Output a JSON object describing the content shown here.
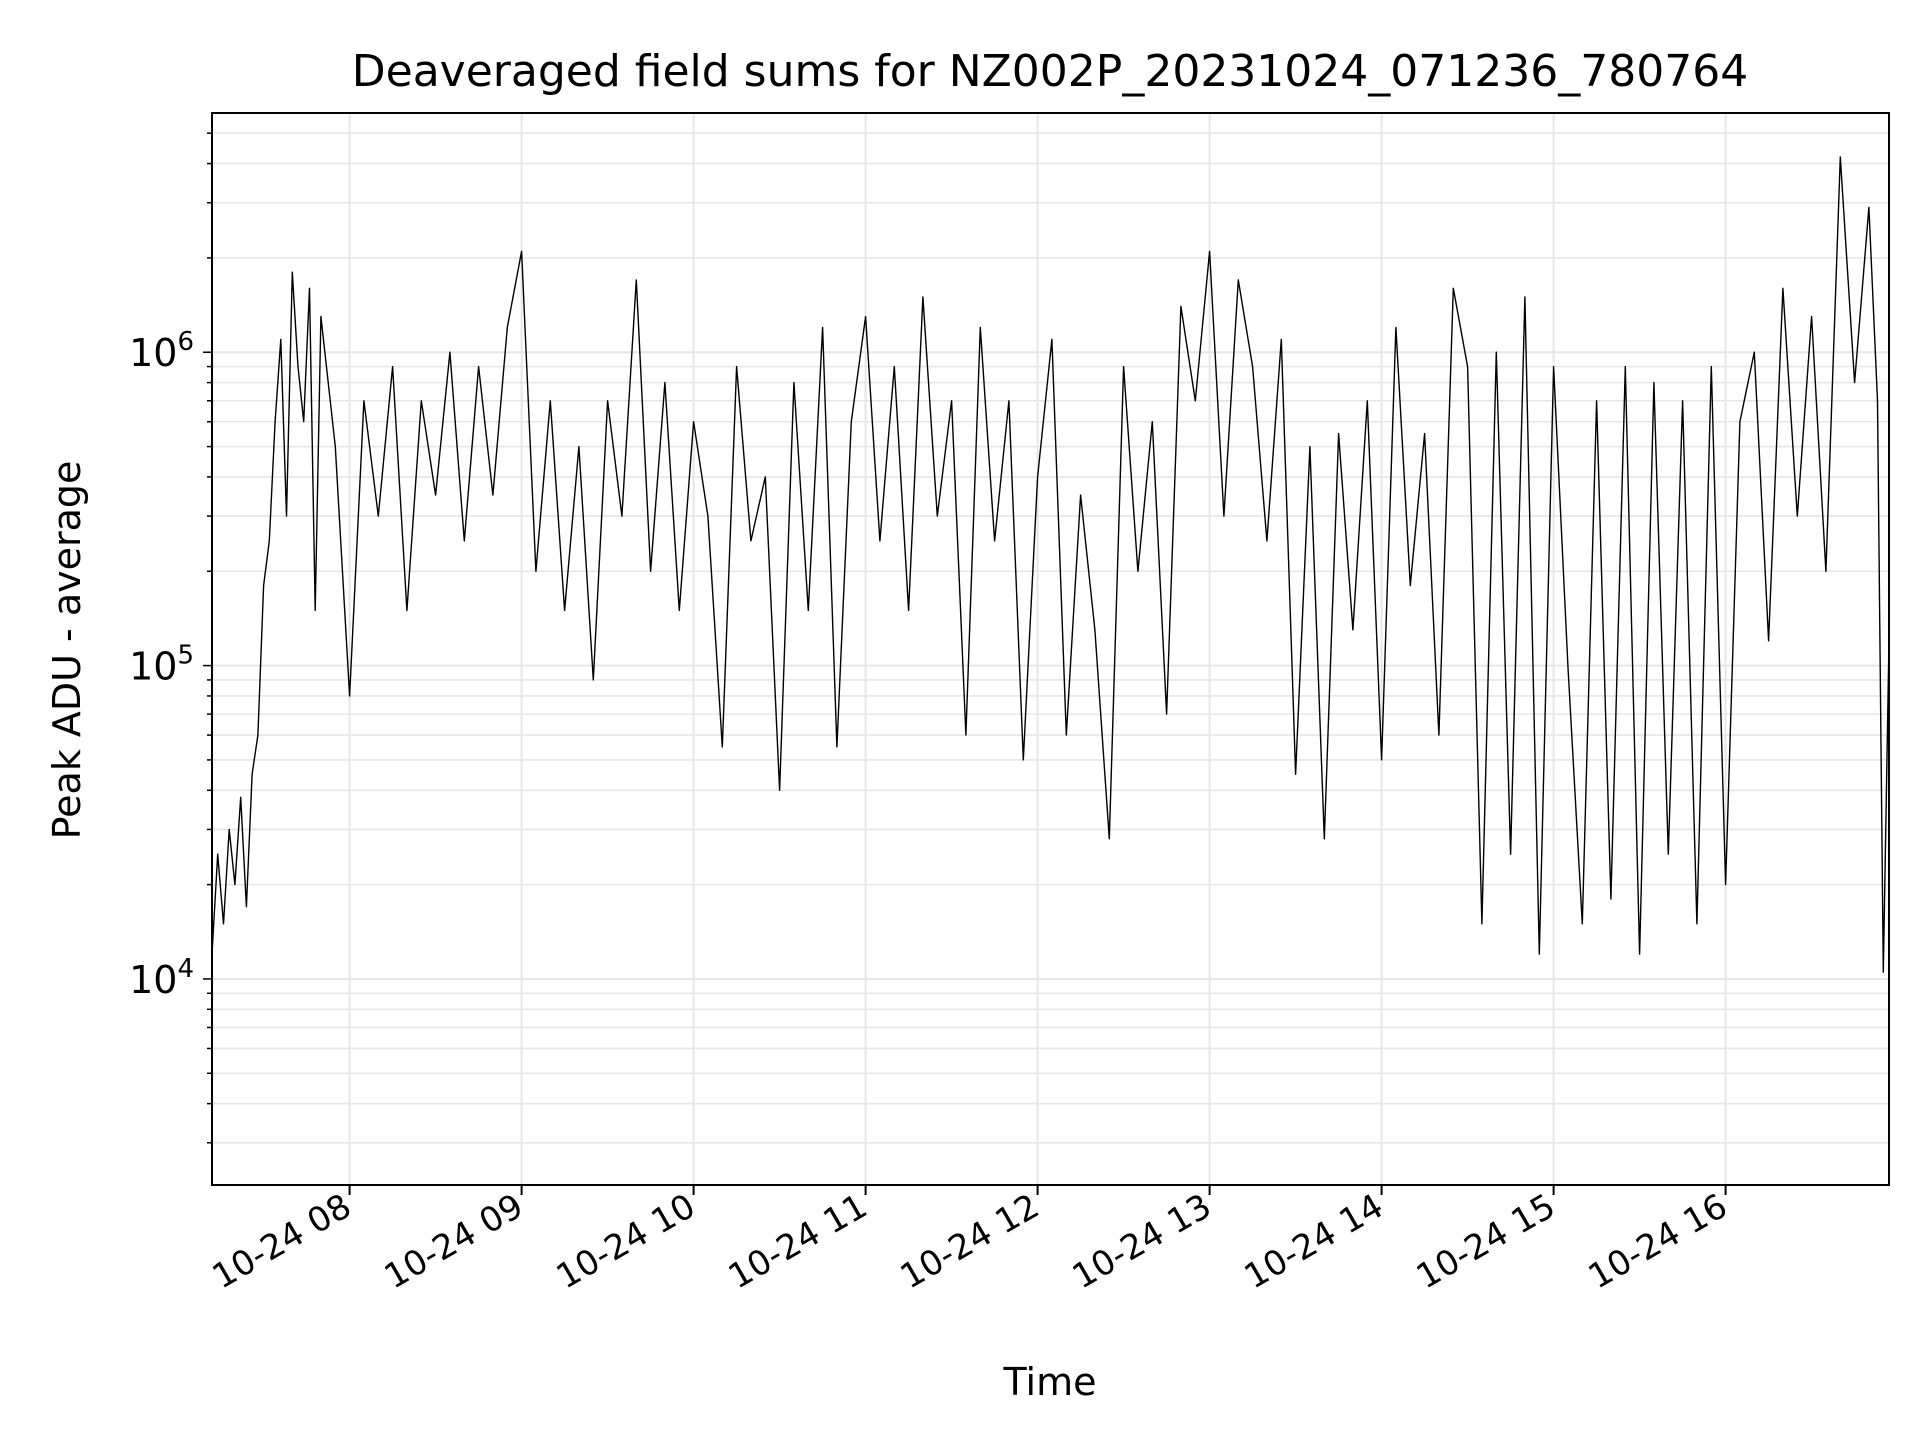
{
  "chart_data": {
    "type": "line",
    "title": "Deaveraged field sums for NZ002P_20231024_071236_780764",
    "xlabel": "Time",
    "ylabel": "Peak ADU - average",
    "yscale": "log",
    "grid": true,
    "line_color": "#000000",
    "grid_color": "#e6e6e6",
    "xlim": [
      "2023-10-24 07:12",
      "2023-10-24 16:57"
    ],
    "ylim": [
      2200,
      5800000
    ],
    "x_ticks": [
      {
        "value": "2023-10-24 08:00",
        "label": "10-24 08"
      },
      {
        "value": "2023-10-24 09:00",
        "label": "10-24 09"
      },
      {
        "value": "2023-10-24 10:00",
        "label": "10-24 10"
      },
      {
        "value": "2023-10-24 11:00",
        "label": "10-24 11"
      },
      {
        "value": "2023-10-24 12:00",
        "label": "10-24 12"
      },
      {
        "value": "2023-10-24 13:00",
        "label": "10-24 13"
      },
      {
        "value": "2023-10-24 14:00",
        "label": "10-24 14"
      },
      {
        "value": "2023-10-24 15:00",
        "label": "10-24 15"
      },
      {
        "value": "2023-10-24 16:00",
        "label": "10-24 16"
      }
    ],
    "y_ticks": [
      {
        "value": 10000,
        "base": "10",
        "exp": "4"
      },
      {
        "value": 100000,
        "base": "10",
        "exp": "5"
      },
      {
        "value": 1000000,
        "base": "10",
        "exp": "6"
      }
    ],
    "series": [
      {
        "x": [
          "2023-10-24 07:12",
          "2023-10-24 07:14",
          "2023-10-24 07:16",
          "2023-10-24 07:18",
          "2023-10-24 07:20",
          "2023-10-24 07:22",
          "2023-10-24 07:24",
          "2023-10-24 07:26",
          "2023-10-24 07:28",
          "2023-10-24 07:30",
          "2023-10-24 07:32",
          "2023-10-24 07:34",
          "2023-10-24 07:36",
          "2023-10-24 07:38",
          "2023-10-24 07:40",
          "2023-10-24 07:42",
          "2023-10-24 07:44",
          "2023-10-24 07:46",
          "2023-10-24 07:48",
          "2023-10-24 07:50",
          "2023-10-24 07:55",
          "2023-10-24 08:00",
          "2023-10-24 08:05",
          "2023-10-24 08:10",
          "2023-10-24 08:15",
          "2023-10-24 08:20",
          "2023-10-24 08:25",
          "2023-10-24 08:30",
          "2023-10-24 08:35",
          "2023-10-24 08:40",
          "2023-10-24 08:45",
          "2023-10-24 08:50",
          "2023-10-24 08:55",
          "2023-10-24 09:00",
          "2023-10-24 09:05",
          "2023-10-24 09:10",
          "2023-10-24 09:15",
          "2023-10-24 09:20",
          "2023-10-24 09:25",
          "2023-10-24 09:30",
          "2023-10-24 09:35",
          "2023-10-24 09:40",
          "2023-10-24 09:45",
          "2023-10-24 09:50",
          "2023-10-24 09:55",
          "2023-10-24 10:00",
          "2023-10-24 10:05",
          "2023-10-24 10:10",
          "2023-10-24 10:15",
          "2023-10-24 10:20",
          "2023-10-24 10:25",
          "2023-10-24 10:30",
          "2023-10-24 10:35",
          "2023-10-24 10:40",
          "2023-10-24 10:45",
          "2023-10-24 10:50",
          "2023-10-24 10:55",
          "2023-10-24 11:00",
          "2023-10-24 11:05",
          "2023-10-24 11:10",
          "2023-10-24 11:15",
          "2023-10-24 11:20",
          "2023-10-24 11:25",
          "2023-10-24 11:30",
          "2023-10-24 11:35",
          "2023-10-24 11:40",
          "2023-10-24 11:45",
          "2023-10-24 11:50",
          "2023-10-24 11:55",
          "2023-10-24 12:00",
          "2023-10-24 12:05",
          "2023-10-24 12:10",
          "2023-10-24 12:15",
          "2023-10-24 12:20",
          "2023-10-24 12:25",
          "2023-10-24 12:30",
          "2023-10-24 12:35",
          "2023-10-24 12:40",
          "2023-10-24 12:45",
          "2023-10-24 12:50",
          "2023-10-24 12:55",
          "2023-10-24 13:00",
          "2023-10-24 13:05",
          "2023-10-24 13:10",
          "2023-10-24 13:15",
          "2023-10-24 13:20",
          "2023-10-24 13:25",
          "2023-10-24 13:30",
          "2023-10-24 13:35",
          "2023-10-24 13:40",
          "2023-10-24 13:45",
          "2023-10-24 13:50",
          "2023-10-24 13:55",
          "2023-10-24 14:00",
          "2023-10-24 14:05",
          "2023-10-24 14:10",
          "2023-10-24 14:15",
          "2023-10-24 14:20",
          "2023-10-24 14:25",
          "2023-10-24 14:30",
          "2023-10-24 14:35",
          "2023-10-24 14:40",
          "2023-10-24 14:45",
          "2023-10-24 14:50",
          "2023-10-24 14:55",
          "2023-10-24 15:00",
          "2023-10-24 15:05",
          "2023-10-24 15:10",
          "2023-10-24 15:15",
          "2023-10-24 15:20",
          "2023-10-24 15:25",
          "2023-10-24 15:30",
          "2023-10-24 15:35",
          "2023-10-24 15:40",
          "2023-10-24 15:45",
          "2023-10-24 15:50",
          "2023-10-24 15:55",
          "2023-10-24 16:00",
          "2023-10-24 16:05",
          "2023-10-24 16:10",
          "2023-10-24 16:15",
          "2023-10-24 16:20",
          "2023-10-24 16:25",
          "2023-10-24 16:30",
          "2023-10-24 16:35",
          "2023-10-24 16:40",
          "2023-10-24 16:45",
          "2023-10-24 16:50",
          "2023-10-24 16:53",
          "2023-10-24 16:55",
          "2023-10-24 16:57"
        ],
        "y": [
          12000,
          25000,
          15000,
          30000,
          20000,
          38000,
          17000,
          45000,
          60000,
          180000,
          250000,
          600000,
          1100000,
          300000,
          1800000,
          900000,
          600000,
          1600000,
          150000,
          1300000,
          500000,
          80000,
          700000,
          300000,
          900000,
          150000,
          700000,
          350000,
          1000000,
          250000,
          900000,
          350000,
          1200000,
          2100000,
          200000,
          700000,
          150000,
          500000,
          90000,
          700000,
          300000,
          1700000,
          200000,
          800000,
          150000,
          600000,
          300000,
          55000,
          900000,
          250000,
          400000,
          40000,
          800000,
          150000,
          1200000,
          55000,
          600000,
          1300000,
          250000,
          900000,
          150000,
          1500000,
          300000,
          700000,
          60000,
          1200000,
          250000,
          700000,
          50000,
          400000,
          1100000,
          60000,
          350000,
          130000,
          28000,
          900000,
          200000,
          600000,
          70000,
          1400000,
          700000,
          2100000,
          300000,
          1700000,
          900000,
          250000,
          1100000,
          45000,
          500000,
          28000,
          550000,
          130000,
          700000,
          50000,
          1200000,
          180000,
          550000,
          60000,
          1600000,
          900000,
          15000,
          1000000,
          25000,
          1500000,
          12000,
          900000,
          100000,
          15000,
          700000,
          18000,
          900000,
          12000,
          800000,
          25000,
          700000,
          15000,
          900000,
          20000,
          600000,
          1000000,
          120000,
          1600000,
          300000,
          1300000,
          200000,
          4200000,
          800000,
          2900000,
          700000,
          10500,
          120000
        ]
      }
    ]
  }
}
